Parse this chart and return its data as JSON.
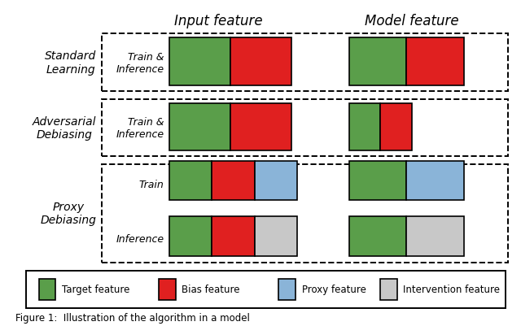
{
  "colors": {
    "target": "#5a9e4a",
    "bias": "#e02020",
    "proxy": "#8ab4d8",
    "intervention": "#c8c8c8"
  },
  "col_headers": [
    "Input feature",
    "Model feature"
  ],
  "legend_labels": [
    "Target feature",
    "Bias feature",
    "Proxy feature",
    "Intervention feature"
  ],
  "legend_colors": [
    "#5a9e4a",
    "#e02020",
    "#8ab4d8",
    "#c8c8c8"
  ],
  "rows": [
    {
      "label": "Standard\nLearning",
      "sublabels": [
        "Train &\nInference"
      ],
      "input_bars": [
        [
          [
            "target",
            1.0
          ],
          [
            "bias",
            1.0
          ]
        ]
      ],
      "model_bars": [
        [
          [
            "target",
            1.0
          ],
          [
            "bias",
            1.0
          ]
        ]
      ],
      "model_bar_scale": 1.0
    },
    {
      "label": "Adversarial\nDebiasing",
      "sublabels": [
        "Train &\nInference"
      ],
      "input_bars": [
        [
          [
            "target",
            1.0
          ],
          [
            "bias",
            1.0
          ]
        ]
      ],
      "model_bars": [
        [
          [
            "target",
            1.0
          ],
          [
            "bias",
            1.0
          ]
        ]
      ],
      "model_bar_scale": 0.55
    },
    {
      "label": "Proxy\nDebiasing",
      "sublabels": [
        "Train",
        "Inference"
      ],
      "input_bars": [
        [
          [
            "target",
            1.0
          ],
          [
            "bias",
            1.0
          ],
          [
            "proxy",
            1.0
          ]
        ],
        [
          [
            "target",
            1.0
          ],
          [
            "bias",
            1.0
          ],
          [
            "intervention",
            1.0
          ]
        ]
      ],
      "model_bars": [
        [
          [
            "target",
            1.0
          ],
          [
            "proxy",
            1.0
          ]
        ],
        [
          [
            "target",
            1.0
          ],
          [
            "intervention",
            1.0
          ]
        ]
      ],
      "model_bar_scale": 1.0
    }
  ],
  "caption": "Figure 1:  Illustration of the algorithm in a model"
}
